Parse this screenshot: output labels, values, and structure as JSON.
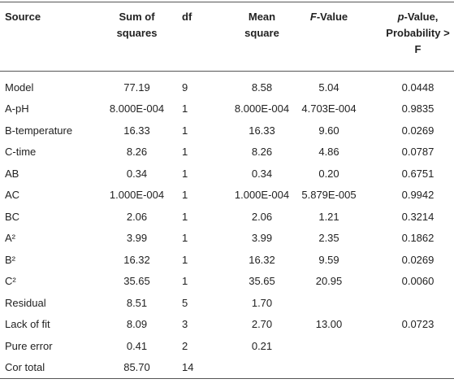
{
  "table": {
    "headers": [
      "Source",
      "Sum of squares",
      "df",
      "Mean square",
      "F-Value",
      "p-Value, Probability > F"
    ],
    "rows": [
      [
        "Model",
        "77.19",
        "9",
        "8.58",
        "5.04",
        "0.0448"
      ],
      [
        "A-pH",
        "8.000E-004",
        "1",
        "8.000E-004",
        "4.703E-004",
        "0.9835"
      ],
      [
        "B-temperature",
        "16.33",
        "1",
        "16.33",
        "9.60",
        "0.0269"
      ],
      [
        "C-time",
        "8.26",
        "1",
        "8.26",
        "4.86",
        "0.0787"
      ],
      [
        "AB",
        "0.34",
        "1",
        "0.34",
        "0.20",
        "0.6751"
      ],
      [
        "AC",
        "1.000E-004",
        "1",
        "1.000E-004",
        "5.879E-005",
        "0.9942"
      ],
      [
        "BC",
        "2.06",
        "1",
        "2.06",
        "1.21",
        "0.3214"
      ],
      [
        "A²",
        "3.99",
        "1",
        "3.99",
        "2.35",
        "0.1862"
      ],
      [
        "B²",
        "16.32",
        "1",
        "16.32",
        "9.59",
        "0.0269"
      ],
      [
        "C²",
        "35.65",
        "1",
        "35.65",
        "20.95",
        "0.0060"
      ],
      [
        "Residual",
        "8.51",
        "5",
        "1.70"
      ],
      [
        "Lack of fit",
        "8.09",
        "3",
        "2.70",
        "13.00",
        "0.0723"
      ],
      [
        "Pure error",
        "0.41",
        "2",
        "0.21"
      ],
      [
        "Cor total",
        "85.70",
        "14"
      ]
    ]
  }
}
